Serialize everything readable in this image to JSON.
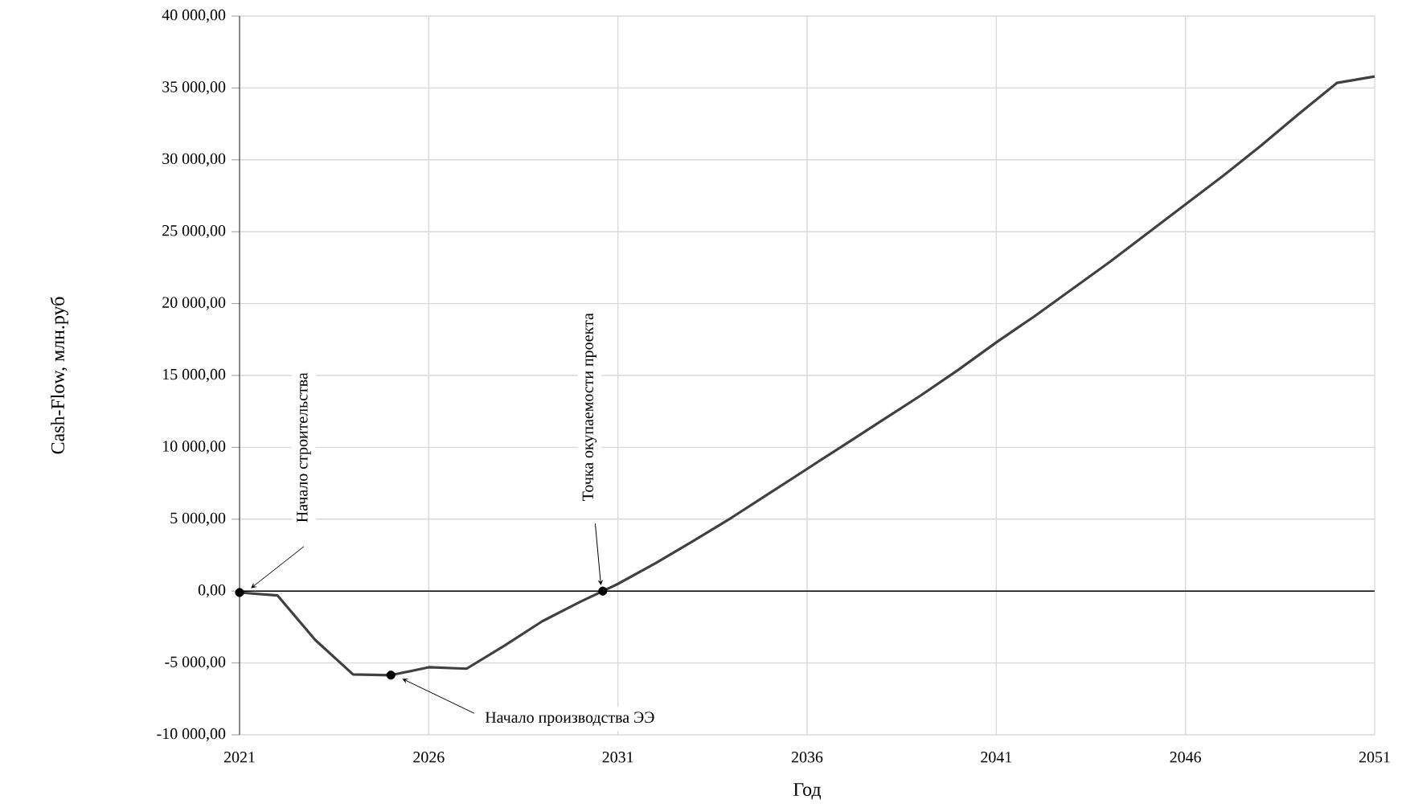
{
  "chart_data": {
    "type": "line",
    "xlabel": "Год",
    "ylabel": "Cash-Flow, млн.руб",
    "x": [
      2021,
      2022,
      2023,
      2024,
      2025,
      2026,
      2027,
      2028,
      2029,
      2030,
      2031,
      2032,
      2033,
      2034,
      2035,
      2036,
      2037,
      2038,
      2039,
      2040,
      2041,
      2042,
      2043,
      2044,
      2045,
      2046,
      2047,
      2048,
      2049,
      2050,
      2051
    ],
    "series": [
      {
        "color": "#404040",
        "values": [
          -100,
          -300,
          -3400,
          -5800,
          -5850,
          -5300,
          -5400,
          -3800,
          -2100,
          -750,
          500,
          1950,
          3500,
          5100,
          6800,
          8500,
          10200,
          11900,
          13600,
          15400,
          17300,
          19100,
          21000,
          22900,
          24900,
          26900,
          28900,
          31000,
          33200,
          35350,
          35800
        ]
      },
      {
        "type": "scatter",
        "marker": "circle",
        "color": "#000000",
        "x": [
          2021,
          2025,
          2030.6
        ],
        "values": [
          -100,
          -5850,
          0
        ]
      }
    ],
    "ref_lines": [
      {
        "axis": "y",
        "value": 0,
        "color": "#000000"
      }
    ],
    "xlim": [
      2021,
      2051
    ],
    "xticks": [
      2021,
      2026,
      2031,
      2036,
      2041,
      2046,
      2051
    ],
    "ylim": [
      -10000,
      40000
    ],
    "yticks": [
      {
        "value": -10000,
        "label": "-10 000,00"
      },
      {
        "value": -5000,
        "label": "-5 000,00"
      },
      {
        "value": 0,
        "label": "0,00"
      },
      {
        "value": 5000,
        "label": "5 000,00"
      },
      {
        "value": 10000,
        "label": "10 000,00"
      },
      {
        "value": 15000,
        "label": "15 000,00"
      },
      {
        "value": 20000,
        "label": "20 000,00"
      },
      {
        "value": 25000,
        "label": "25 000,00"
      },
      {
        "value": 30000,
        "label": "30 000,00"
      },
      {
        "value": 35000,
        "label": "35 000,00"
      },
      {
        "value": 40000,
        "label": "40 000,00"
      }
    ],
    "grid": true,
    "marker": "none",
    "line_style": "solid",
    "annotations": [
      "Начало строительства",
      "Начало производства ЭЭ",
      "Точка окупаемости проекта"
    ]
  }
}
